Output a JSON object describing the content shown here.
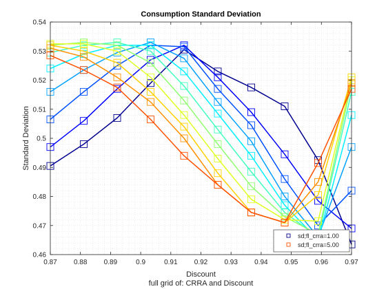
{
  "chart_data": {
    "type": "line",
    "title": "Consumption Standard Deviation",
    "xlabel": "Discount",
    "ylabel": "Standard Deviation",
    "footer": "full grid of: CRRA and Discount",
    "xlim": [
      0.87,
      0.97
    ],
    "ylim": [
      0.46,
      0.54
    ],
    "xticks": [
      0.87,
      0.88,
      0.89,
      0.9,
      0.91,
      0.92,
      0.93,
      0.94,
      0.95,
      0.96,
      0.97
    ],
    "xtick_labels": [
      "0.87",
      "0.88",
      "0.89",
      "0.9",
      "0.91",
      "0.92",
      "0.93",
      "0.94",
      "0.95",
      "0.96",
      "0.97"
    ],
    "yticks": [
      0.46,
      0.47,
      0.48,
      0.49,
      0.5,
      0.51,
      0.52,
      0.53,
      0.54
    ],
    "ytick_labels": [
      "0.46",
      "0.47",
      "0.48",
      "0.49",
      "0.5",
      "0.51",
      "0.52",
      "0.53",
      "0.54"
    ],
    "grid": "minor-dotted",
    "marker": "square",
    "legend_position": "bottom-right",
    "x": [
      0.87,
      0.8811,
      0.8922,
      0.9033,
      0.9144,
      0.9256,
      0.9367,
      0.9478,
      0.9589,
      0.97
    ],
    "series": [
      {
        "name": "sd;fl_crra=1.00",
        "color": "#00008f",
        "values": [
          0.4905,
          0.498,
          0.507,
          0.519,
          0.5305,
          0.523,
          0.5175,
          0.511,
          0.4925,
          0.4635
        ]
      },
      {
        "color": "#0000ff",
        "values": [
          0.497,
          0.506,
          0.517,
          0.527,
          0.532,
          0.521,
          0.509,
          0.4945,
          0.4785,
          0.469
        ]
      },
      {
        "color": "#0050ff",
        "values": [
          0.5065,
          0.516,
          0.525,
          0.532,
          0.5315,
          0.517,
          0.5045,
          0.486,
          0.47,
          0.482
        ]
      },
      {
        "color": "#00a0ff",
        "values": [
          0.516,
          0.5235,
          0.5295,
          0.533,
          0.5275,
          0.5125,
          0.499,
          0.48,
          0.466,
          0.497
        ]
      },
      {
        "color": "#00f0ff",
        "values": [
          0.524,
          0.529,
          0.532,
          0.532,
          0.523,
          0.5085,
          0.494,
          0.477,
          0.465,
          0.508
        ]
      },
      {
        "color": "#40ffbf",
        "values": [
          0.5295,
          0.532,
          0.533,
          0.53,
          0.518,
          0.503,
          0.4885,
          0.4745,
          0.466,
          0.516
        ]
      },
      {
        "color": "#90ff70",
        "values": [
          0.532,
          0.533,
          0.532,
          0.526,
          0.513,
          0.498,
          0.4835,
          0.473,
          0.467,
          0.519
        ]
      },
      {
        "color": "#e0ff20",
        "values": [
          0.5325,
          0.5325,
          0.53,
          0.521,
          0.508,
          0.493,
          0.479,
          0.472,
          0.4715,
          0.52
        ]
      },
      {
        "color": "#ffd000",
        "values": [
          0.532,
          0.53,
          0.526,
          0.516,
          0.504,
          0.488,
          0.4745,
          0.471,
          0.4805,
          0.521
        ]
      },
      {
        "color": "#ff9000",
        "values": [
          0.531,
          0.528,
          0.521,
          0.5125,
          0.5,
          0.484,
          0.4745,
          0.471,
          0.485,
          0.519
        ]
      },
      {
        "name": "sd;fl_crra=5.00",
        "color": "#ff5000",
        "values": [
          0.5285,
          0.5235,
          0.5175,
          0.5065,
          0.494,
          0.484,
          0.4745,
          0.471,
          0.4915,
          0.517
        ]
      }
    ]
  }
}
